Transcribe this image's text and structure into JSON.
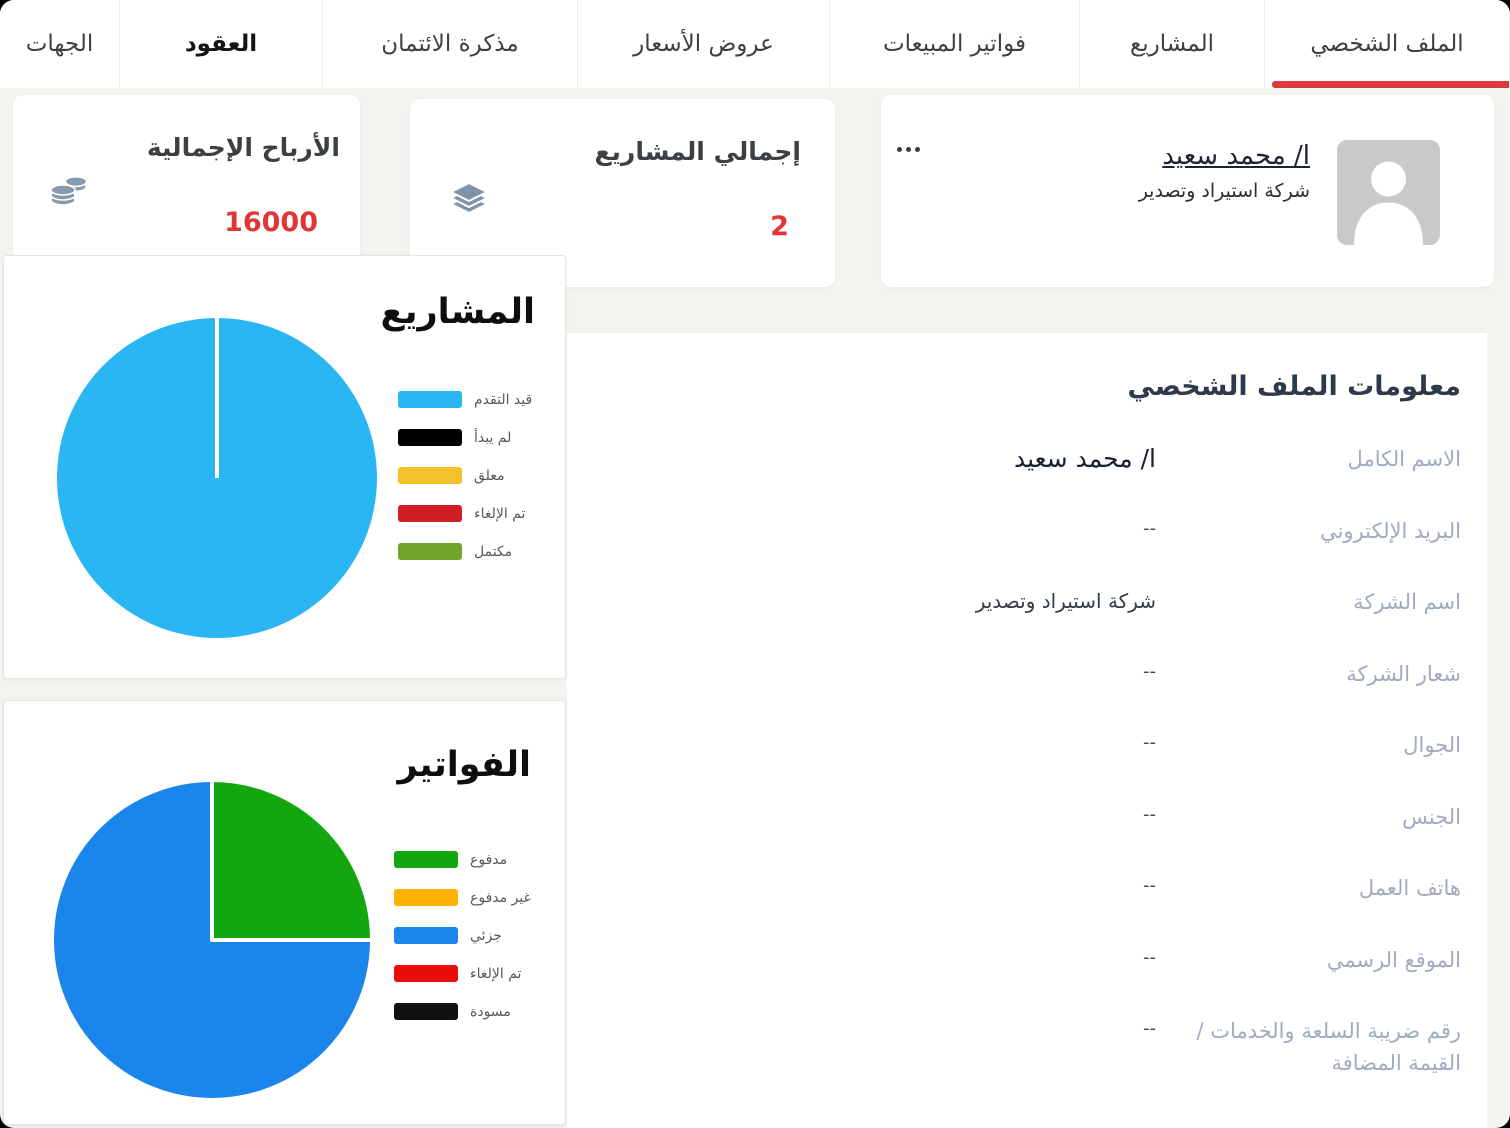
{
  "tabs": [
    {
      "id": "tab-profile",
      "label": "الملف الشخصي",
      "active": true,
      "bold": false
    },
    {
      "id": "tab-projects",
      "label": "المشاريع",
      "active": false,
      "bold": false
    },
    {
      "id": "tab-sales-invoices",
      "label": "فواتير المبيعات",
      "active": false,
      "bold": false
    },
    {
      "id": "tab-quotations",
      "label": "عروض الأسعار",
      "active": false,
      "bold": false
    },
    {
      "id": "tab-credit-memo",
      "label": "مذكرة الائتمان",
      "active": false,
      "bold": false
    },
    {
      "id": "tab-contracts",
      "label": "العقود",
      "active": false,
      "bold": true
    },
    {
      "id": "tab-contacts",
      "label": "الجهات",
      "active": false,
      "bold": false
    }
  ],
  "accent_colors": {
    "active_tab_underline": "#d93b3b",
    "stat_value_red": "#e23636"
  },
  "stats": [
    {
      "title": "الأرباح الإجمالية",
      "value": "16000",
      "icon": "coins-icon"
    },
    {
      "title": "إجمالي المشاريع",
      "value": "2",
      "icon": "layers-icon"
    }
  ],
  "profile_card": {
    "name": "ا/ محمد سعيد",
    "company": "شركة استيراد وتصدير",
    "menu_icon": "ellipsis-icon",
    "avatar_icon": "person-icon"
  },
  "chart_data": [
    {
      "type": "pie",
      "title": "المشاريع",
      "legend_position": "right",
      "slices": [
        {
          "label": "قيد التقدم",
          "value": 2,
          "percent": 100,
          "color": "#29b6f3"
        },
        {
          "label": "لم يبدأ",
          "value": 0,
          "percent": 0,
          "color": "#000000"
        },
        {
          "label": "معلق",
          "value": 0,
          "percent": 0,
          "color": "#f3c12b"
        },
        {
          "label": "تم الإلغاء",
          "value": 0,
          "percent": 0,
          "color": "#cf1f24"
        },
        {
          "label": "مكتمل",
          "value": 0,
          "percent": 0,
          "color": "#74a42c"
        }
      ]
    },
    {
      "type": "pie",
      "title": "الفواتير",
      "legend_position": "right",
      "slices": [
        {
          "label": "مدفوع",
          "percent": 25,
          "color": "#12a70f"
        },
        {
          "label": "غير مدفوع",
          "percent": 0,
          "color": "#ffb300"
        },
        {
          "label": "جزئي",
          "percent": 75,
          "color": "#1a85ea"
        },
        {
          "label": "تم الإلغاء",
          "percent": 0,
          "color": "#ea0b0b"
        },
        {
          "label": "مسودة",
          "percent": 0,
          "color": "#111111"
        }
      ]
    }
  ],
  "info_panel": {
    "heading": "معلومات الملف الشخصي",
    "rows": [
      {
        "label": "الاسم الكامل",
        "value": "ا/ محمد سعيد"
      },
      {
        "label": "البريد الإلكتروني",
        "value": "--"
      },
      {
        "label": "اسم الشركة",
        "value": "شركة استيراد وتصدير"
      },
      {
        "label": "شعار الشركة",
        "value": "--"
      },
      {
        "label": "الجوال",
        "value": "--"
      },
      {
        "label": "الجنس",
        "value": "--"
      },
      {
        "label": "هاتف العمل",
        "value": "--"
      },
      {
        "label": "الموقع الرسمي",
        "value": "--"
      },
      {
        "label": "رقم ضريبة السلعة والخدمات / القيمة المضافة",
        "value": "--"
      }
    ]
  }
}
